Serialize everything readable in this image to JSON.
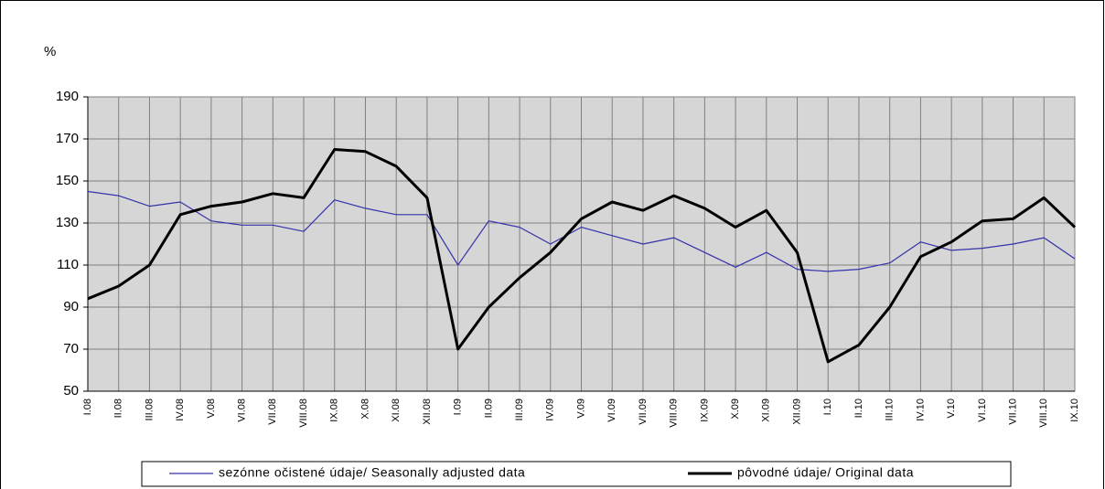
{
  "chart_data": {
    "type": "line",
    "y_label": "%",
    "categories": [
      "I.08",
      "II.08",
      "III.08",
      "IV.08",
      "V.08",
      "VI.08",
      "VII.08",
      "VIII.08",
      "IX.08",
      "X.08",
      "XI.08",
      "XII.08",
      "I.09",
      "II.09",
      "III.09",
      "IV.09",
      "V.09",
      "VI.09",
      "VII.09",
      "VIII.09",
      "IX.09",
      "X.09",
      "XI.09",
      "XII.09",
      "I.10",
      "II.10",
      "III.10",
      "IV.10",
      "V.10",
      "VI.10",
      "VII.10",
      "VIII.10",
      "IX.10"
    ],
    "series": [
      {
        "name": "sezónne očistené údaje/ Seasonally adjusted data",
        "color": "#3333aa",
        "width": 1.2,
        "values": [
          145,
          143,
          138,
          140,
          131,
          129,
          129,
          126,
          141,
          137,
          134,
          134,
          110,
          131,
          128,
          120,
          128,
          124,
          120,
          123,
          116,
          109,
          116,
          108,
          107,
          108,
          111,
          121,
          117,
          118,
          120,
          123,
          113
        ]
      },
      {
        "name": "pôvodné údaje/ Original data",
        "color": "#000000",
        "width": 3,
        "values": [
          94,
          100,
          110,
          134,
          138,
          140,
          144,
          142,
          165,
          164,
          157,
          142,
          70,
          90,
          104,
          116,
          132,
          140,
          136,
          143,
          137,
          128,
          136,
          116,
          64,
          72,
          90,
          114,
          121,
          131,
          132,
          142,
          128
        ]
      }
    ],
    "ylim": [
      50,
      190
    ],
    "yticks": [
      50,
      70,
      90,
      110,
      130,
      150,
      170,
      190
    ],
    "grid": true,
    "legend": "bottom"
  }
}
